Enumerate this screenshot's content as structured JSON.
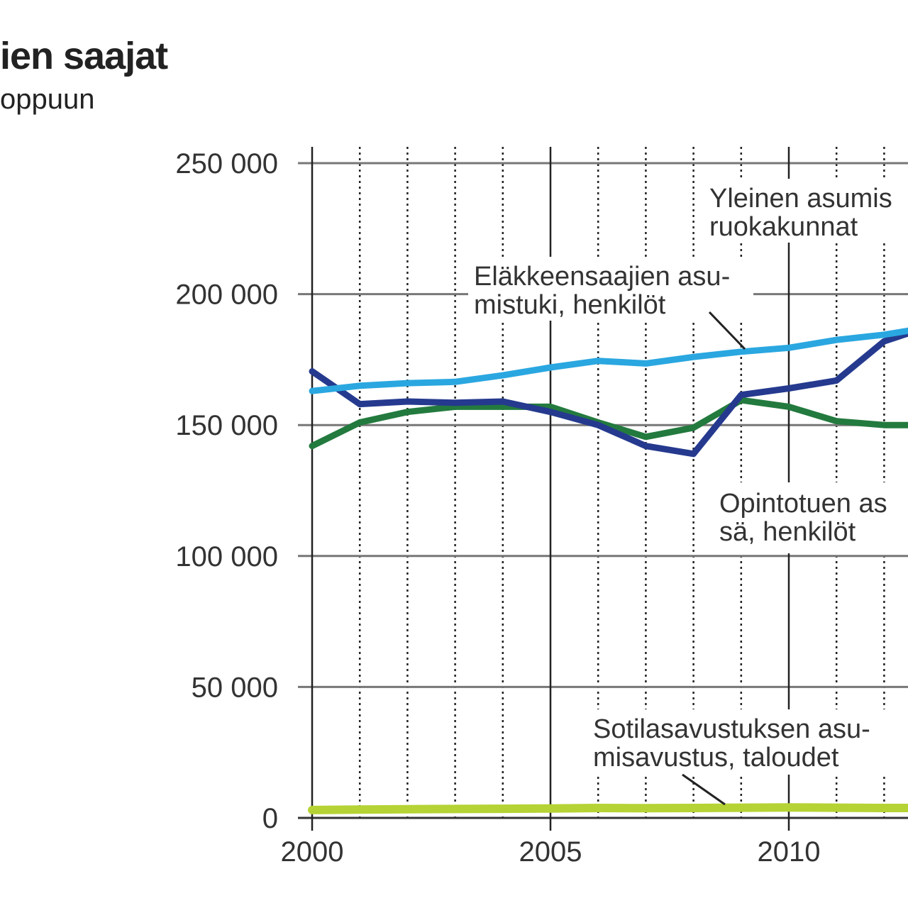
{
  "title": "ien saajat",
  "subtitle": "oppuun",
  "chart_data": {
    "type": "line",
    "xlim": [
      2000,
      2012.5
    ],
    "ylim": [
      0,
      250000
    ],
    "x_ticks": [
      {
        "value": 2000,
        "label": "2000"
      },
      {
        "value": 2005,
        "label": "2005"
      },
      {
        "value": 2010,
        "label": "2010"
      }
    ],
    "y_ticks": [
      {
        "value": 0,
        "label": "0"
      },
      {
        "value": 50000,
        "label": "50 000"
      },
      {
        "value": 100000,
        "label": "100 000"
      },
      {
        "value": 150000,
        "label": "150 000"
      },
      {
        "value": 200000,
        "label": "200 000"
      },
      {
        "value": 250000,
        "label": "250 000"
      }
    ],
    "minor_x_gridlines": [
      2001,
      2002,
      2003,
      2004,
      2006,
      2007,
      2008,
      2009,
      2011,
      2012
    ],
    "major_x_gridlines": [
      2000,
      2005,
      2010
    ],
    "x": [
      2000,
      2001,
      2002,
      2003,
      2004,
      2005,
      2006,
      2007,
      2008,
      2009,
      2010,
      2011,
      2012,
      2012.5
    ],
    "series": [
      {
        "color": "#2aa7e0",
        "values": [
          163000,
          165000,
          166000,
          166500,
          169000,
          172000,
          174500,
          173500,
          176000,
          178000,
          179500,
          182500,
          184500,
          186000
        ]
      },
      {
        "color": "#253a8e",
        "values": [
          170500,
          158000,
          159000,
          158500,
          159000,
          155000,
          150000,
          142000,
          139000,
          161500,
          164000,
          167000,
          182000,
          185000
        ]
      },
      {
        "color": "#237a3e",
        "values": [
          142000,
          151000,
          155000,
          157000,
          157000,
          157000,
          151000,
          145500,
          149000,
          159500,
          157000,
          151500,
          150000,
          150000
        ]
      },
      {
        "color": "#b5d334",
        "values": [
          3000,
          3200,
          3300,
          3400,
          3500,
          3600,
          3800,
          3700,
          3800,
          3900,
          4000,
          3900,
          3800,
          3800
        ]
      }
    ],
    "annotations": [
      {
        "lines": [
          "Yleinen asumis",
          "ruokakunnat"
        ]
      },
      {
        "lines": [
          "Eläkkeensaajien asu-",
          "mistuki, henkilöt"
        ]
      },
      {
        "lines": [
          "Opintotuen as",
          "sä, henkilöt"
        ]
      },
      {
        "lines": [
          "Sotilasavustuksen asu-",
          "misavustus, taloudet"
        ]
      }
    ]
  }
}
